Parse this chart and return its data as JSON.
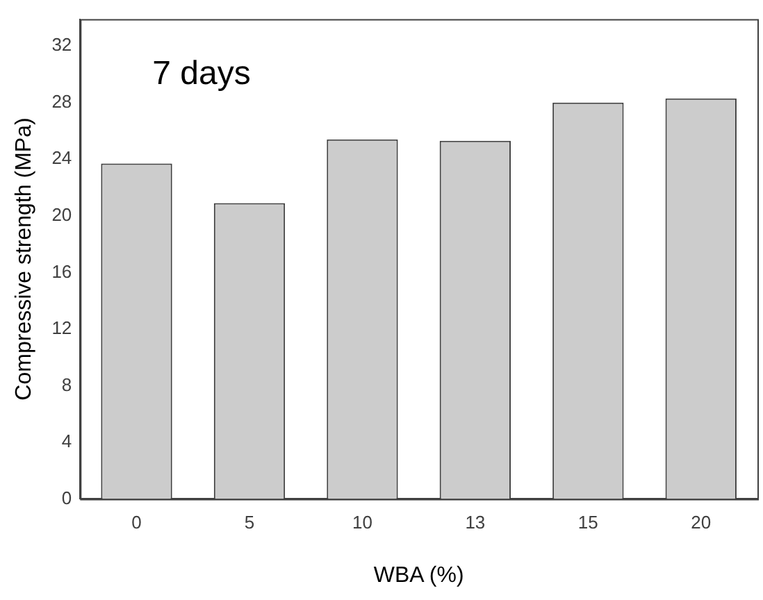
{
  "chart_data": {
    "type": "bar",
    "xlabel": "WBA (%)",
    "ylabel": "Compressive strength (MPa)",
    "annotations": [
      "7 days"
    ],
    "categories": [
      "0",
      "5",
      "10",
      "13",
      "15",
      "20"
    ],
    "values": [
      23.7,
      20.9,
      25.4,
      25.3,
      28.0,
      28.3
    ],
    "color": "#cccccc",
    "ylim": [
      0,
      33.9
    ],
    "yticks": [
      0,
      4,
      8,
      12,
      16,
      20,
      24,
      28,
      32
    ],
    "grid": false,
    "legend": false
  }
}
